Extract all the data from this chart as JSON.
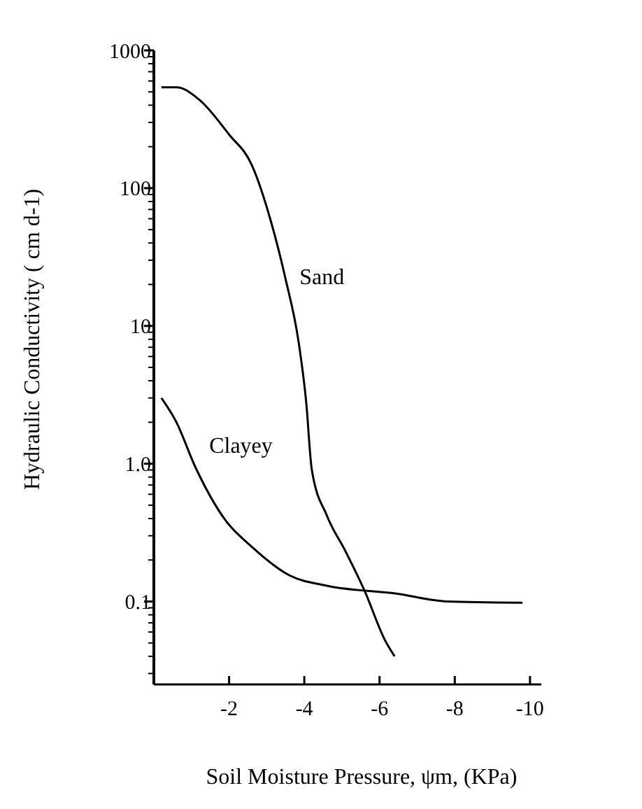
{
  "chart_data": {
    "type": "line",
    "xlabel": "Soil Moisture Pressure, ψm,  (KPa)",
    "ylabel": "Hydraulic Conductivity  ( cm d-1)",
    "log": "y",
    "xlim": [
      0,
      -10.3
    ],
    "xticks": [
      -2,
      -4,
      -6,
      -8,
      -10
    ],
    "ylim": [
      0.025,
      1000
    ],
    "yticks": [
      {
        "value": 0.1,
        "label": "0.1"
      },
      {
        "value": 1,
        "label": "1.0"
      },
      10,
      100,
      1000
    ],
    "grid": false,
    "marker": "none",
    "line_style": "solid",
    "series": [
      {
        "name": "Sand",
        "color": "#000000",
        "x": [
          -0.2,
          -0.6,
          -1.2,
          -2.0,
          -2.6,
          -3.1,
          -3.5,
          -3.85,
          -4.05,
          -4.2,
          -4.6,
          -5.1,
          -5.6,
          -6.15,
          -6.4
        ],
        "values": [
          540,
          540,
          440,
          245,
          148,
          59,
          22,
          7.6,
          2.8,
          0.9,
          0.42,
          0.23,
          0.12,
          0.052,
          0.04
        ]
      },
      {
        "name": "Clayey",
        "color": "#000000",
        "x": [
          -0.2,
          -0.6,
          -1.1,
          -1.9,
          -2.6,
          -3.6,
          -4.6,
          -6.45,
          -7.8,
          -9.8
        ],
        "values": [
          3.0,
          2.0,
          0.95,
          0.39,
          0.25,
          0.155,
          0.13,
          0.114,
          0.1,
          0.098
        ]
      }
    ]
  }
}
